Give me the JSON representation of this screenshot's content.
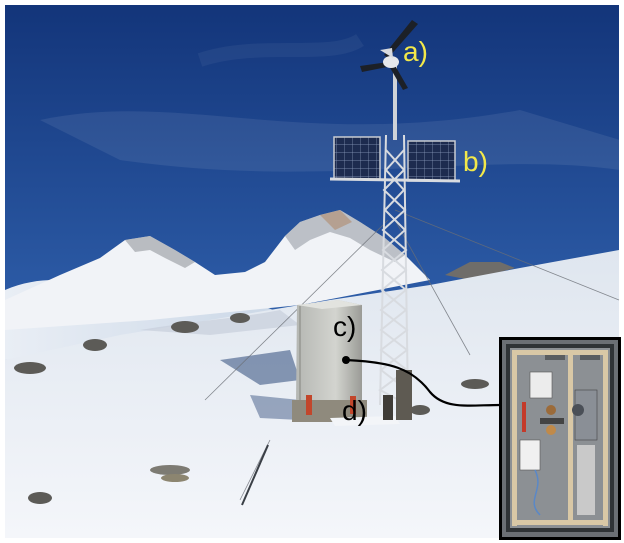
{
  "labels": {
    "a": "a)",
    "b": "b)",
    "c": "c)",
    "d": "d)"
  },
  "colors": {
    "label_yellow": "#f2e84a",
    "label_black": "#000000",
    "sky_top": "#1a3f86",
    "sky_bottom": "#4d80bf",
    "snow": "#eef2f7"
  },
  "icons": {
    "wind_turbine": "wind-turbine",
    "solar_panels": "solar-panels",
    "equipment_box": "equipment-enclosure",
    "inset": "enclosure-interior-photo"
  }
}
